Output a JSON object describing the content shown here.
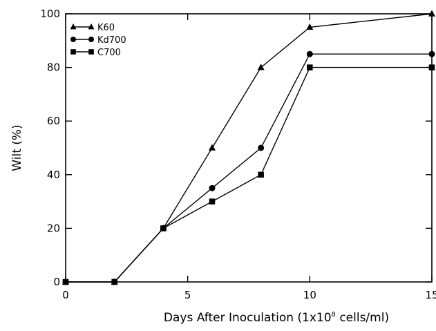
{
  "chart_data": {
    "type": "line",
    "title": "",
    "xlabel": "Days After Inoculation (1x10",
    "xlabel_superscript": "8",
    "xlabel_suffix": " cells/ml)",
    "ylabel": "Wilt (%)",
    "xlim": [
      0,
      15
    ],
    "ylim": [
      0,
      100
    ],
    "x_ticks": [
      0,
      5,
      10,
      15
    ],
    "y_ticks": [
      0,
      20,
      40,
      60,
      80,
      100
    ],
    "grid": false,
    "legend_position": "top-left",
    "x": [
      0,
      2,
      4,
      6,
      8,
      10,
      15
    ],
    "series": [
      {
        "name": "K60",
        "marker": "triangle",
        "values": [
          0,
          0,
          20,
          50,
          80,
          95,
          100
        ]
      },
      {
        "name": "Kd700",
        "marker": "circle",
        "values": [
          0,
          0,
          20,
          35,
          50,
          85,
          85
        ]
      },
      {
        "name": "C700",
        "marker": "square",
        "values": [
          0,
          0,
          20,
          30,
          40,
          80,
          80
        ]
      }
    ]
  }
}
